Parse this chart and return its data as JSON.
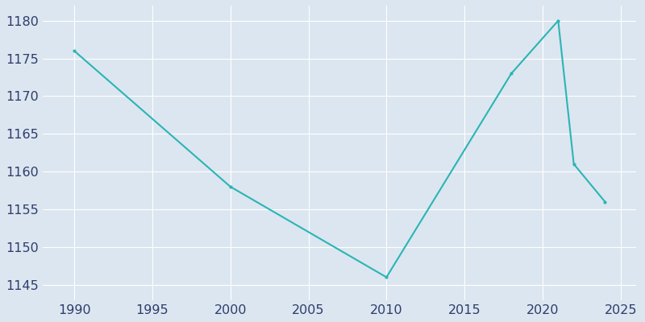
{
  "years": [
    1990,
    2000,
    2010,
    2018,
    2021,
    2022,
    2024
  ],
  "population": [
    1176,
    1158,
    1146,
    1173,
    1180,
    1161,
    1156
  ],
  "line_color": "#2AB5B5",
  "marker": "o",
  "marker_size": 3,
  "line_width": 1.5,
  "background_color": "#DCE6F0",
  "plot_bg_color": "#DCE6F0",
  "grid_color": "#FFFFFF",
  "tick_color": "#2E3D6B",
  "xlim": [
    1988,
    2026
  ],
  "ylim": [
    1143,
    1182
  ],
  "xticks": [
    1990,
    1995,
    2000,
    2005,
    2010,
    2015,
    2020,
    2025
  ],
  "yticks": [
    1145,
    1150,
    1155,
    1160,
    1165,
    1170,
    1175,
    1180
  ],
  "tick_fontsize": 11.5,
  "figsize": [
    8.0,
    4.0
  ],
  "dpi": 100
}
